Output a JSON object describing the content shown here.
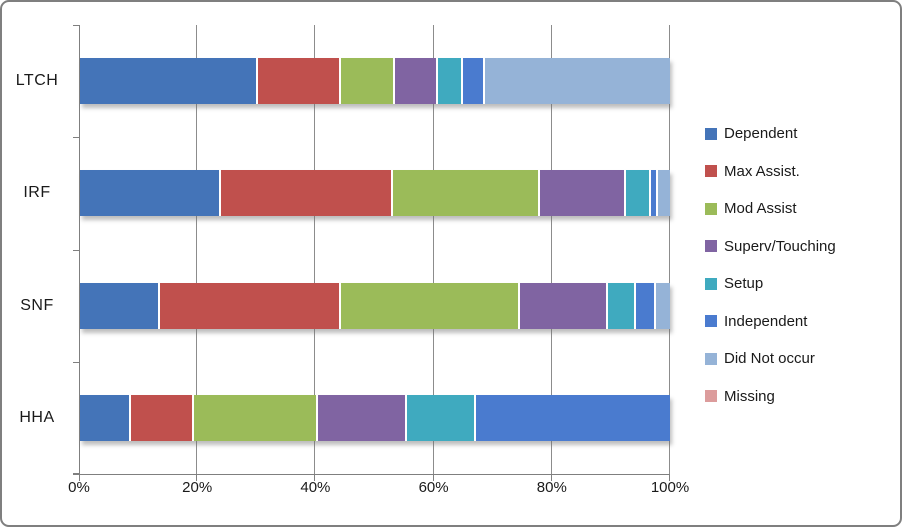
{
  "chart_data": {
    "type": "bar",
    "orientation": "horizontal",
    "stacked": true,
    "title": "",
    "xlabel": "",
    "ylabel": "",
    "xlim": [
      0,
      100
    ],
    "grid": true,
    "legend_position": "right",
    "categories": [
      "LTCH",
      "IRF",
      "SNF",
      "HHA"
    ],
    "x_tick_labels": [
      "0%",
      "20%",
      "40%",
      "60%",
      "80%",
      "100%"
    ],
    "x_tick_values": [
      0,
      20,
      40,
      60,
      80,
      100
    ],
    "series": [
      {
        "name": "Dependent",
        "color": "#4474B8",
        "values": [
          30.5,
          24.0,
          13.5,
          8.5
        ]
      },
      {
        "name": "Max Assist.",
        "color": "#C0504D",
        "values": [
          14.0,
          29.5,
          31.0,
          10.5
        ]
      },
      {
        "name": "Mod Assist",
        "color": "#9BBB59",
        "values": [
          9.0,
          25.0,
          30.5,
          21.0
        ]
      },
      {
        "name": "Superv/Touching",
        "color": "#8064A2",
        "values": [
          7.0,
          14.5,
          15.0,
          15.0
        ]
      },
      {
        "name": "Setup",
        "color": "#3FAABF",
        "values": [
          4.0,
          4.0,
          4.5,
          11.5
        ]
      },
      {
        "name": "Independent",
        "color": "#4A7BCF",
        "values": [
          3.5,
          1.0,
          3.0,
          33.5
        ]
      },
      {
        "name": "Did Not occur",
        "color": "#95B3D7",
        "values": [
          32.0,
          2.0,
          2.5,
          0.0
        ]
      },
      {
        "name": "Missing",
        "color": "#DC9C9C",
        "values": [
          0.0,
          0.0,
          0.0,
          0.0
        ]
      }
    ],
    "colors": {
      "gridline": "#8C8C8C",
      "axis": "#7F7F7F",
      "text": "#1A1A1A",
      "background": "#FFFFFF"
    }
  }
}
